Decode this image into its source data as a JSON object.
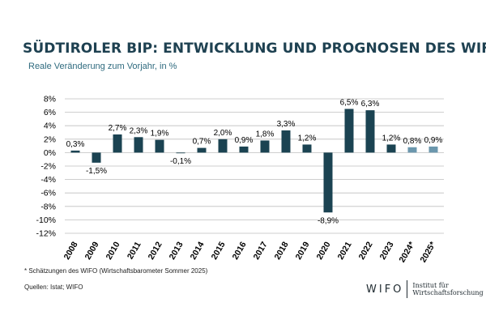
{
  "header": {
    "title": "SÜDTIROLER BIP: ENTWICKLUNG UND PROGNOSEN DES WIFO",
    "subtitle": "Reale Veränderung zum Vorjahr, in %"
  },
  "colors": {
    "title": "#1e4151",
    "subtitle": "#2e6a7e",
    "bar_actual": "#1b4352",
    "bar_forecast": "#6b97ad",
    "grid": "#bfbfbf",
    "text": "#000000"
  },
  "chart_data": {
    "type": "bar",
    "title": "SÜDTIROLER BIP: ENTWICKLUNG UND PROGNOSEN DES WIFO",
    "subtitle": "Reale Veränderung zum Vorjahr, in %",
    "xlabel": "",
    "ylabel": "",
    "categories": [
      "2008",
      "2009",
      "2010",
      "2011",
      "2012",
      "2013",
      "2014",
      "2015",
      "2016",
      "2017",
      "2018",
      "2019",
      "2020",
      "2021",
      "2022",
      "2023",
      "2024*",
      "2025*"
    ],
    "values": [
      0.3,
      -1.5,
      2.7,
      2.3,
      1.9,
      -0.1,
      0.7,
      2.0,
      0.9,
      1.8,
      3.3,
      1.2,
      -8.9,
      6.5,
      6.3,
      1.2,
      0.8,
      0.9
    ],
    "data_labels": [
      "0,3%",
      "-1,5%",
      "2,7%",
      "2,3%",
      "1,9%",
      "-0,1%",
      "0,7%",
      "2,0%",
      "0,9%",
      "1,8%",
      "3,3%",
      "1,2%",
      "-8,9%",
      "6,5%",
      "6,3%",
      "1,2%",
      "0,8%",
      "0,9%"
    ],
    "forecast": [
      false,
      false,
      false,
      false,
      false,
      false,
      false,
      false,
      false,
      false,
      false,
      false,
      false,
      false,
      false,
      false,
      true,
      true
    ],
    "ylim": [
      -12,
      8
    ],
    "yticks": [
      8,
      6,
      4,
      2,
      0,
      -2,
      -4,
      -6,
      -8,
      -10,
      -12
    ],
    "ytick_labels": [
      "8%",
      "6%",
      "4%",
      "2%",
      "0%",
      "-2%",
      "-4%",
      "-6%",
      "-8%",
      "-10%",
      "-12%"
    ],
    "grid": true,
    "legend": "none"
  },
  "footer": {
    "footnote": "* Schätzungen des WIFO (Wirtschaftsbarometer Sommer 2025)",
    "source": "Quellen:  Istat; WIFO"
  },
  "logo": {
    "word": "WIFO",
    "line1": "Institut für",
    "line2": "Wirtschaftsforschung"
  }
}
